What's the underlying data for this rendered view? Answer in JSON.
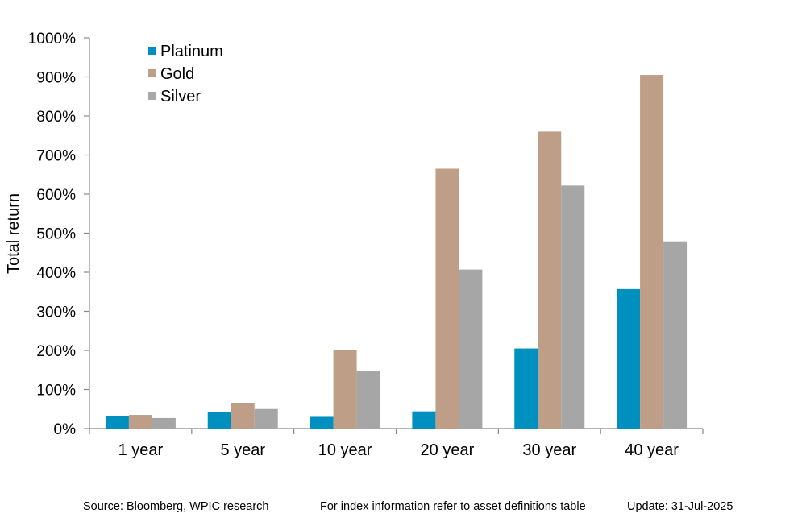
{
  "chart_data": {
    "type": "bar",
    "title": "",
    "xlabel": "",
    "ylabel": "Total return",
    "categories": [
      "1 year",
      "5 year",
      "10 year",
      "20 year",
      "30 year",
      "40 year"
    ],
    "series": [
      {
        "name": "Platinum",
        "color": "#0090C0",
        "values": [
          32,
          43,
          30,
          44,
          205,
          357
        ]
      },
      {
        "name": "Gold",
        "color": "#BF9E87",
        "values": [
          35,
          66,
          200,
          665,
          760,
          905
        ]
      },
      {
        "name": "Silver",
        "color": "#A6A6A6",
        "values": [
          27,
          50,
          148,
          407,
          622,
          479
        ]
      }
    ],
    "ylim": [
      0,
      1000
    ],
    "yticks": [
      0,
      100,
      200,
      300,
      400,
      500,
      600,
      700,
      800,
      900,
      1000
    ],
    "ytick_labels": [
      "0%",
      "100%",
      "200%",
      "300%",
      "400%",
      "500%",
      "600%",
      "700%",
      "800%",
      "900%",
      "1000%"
    ],
    "grid": false,
    "legend_position": "top-left"
  },
  "footer": {
    "source": "Source: Bloomberg, WPIC research",
    "index_note": "For index information refer to asset definitions table",
    "update": "Update: 31-Jul-2025"
  }
}
